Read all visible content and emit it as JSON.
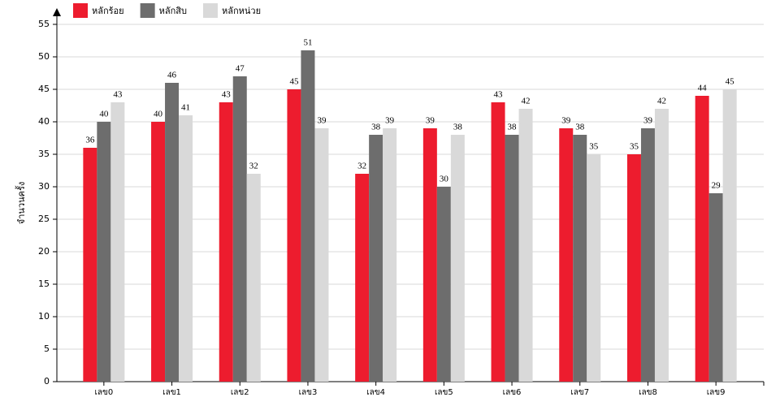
{
  "chart_data": {
    "type": "bar",
    "y_label": "จำนวนครั้ง",
    "categories": [
      "เลข0",
      "เลข1",
      "เลข2",
      "เลข3",
      "เลข4",
      "เลข5",
      "เลข6",
      "เลข7",
      "เลข8",
      "เลข9"
    ],
    "series": [
      {
        "name": "หลักร้อย",
        "color": "#ed1c2e",
        "values": [
          36,
          40,
          43,
          45,
          32,
          39,
          43,
          39,
          35,
          44
        ]
      },
      {
        "name": "หลักสิบ",
        "color": "#6d6d6d",
        "values": [
          40,
          46,
          47,
          51,
          38,
          30,
          38,
          38,
          39,
          29
        ]
      },
      {
        "name": "หลักหน่วย",
        "color": "#d9d9d9",
        "values": [
          43,
          41,
          32,
          39,
          39,
          38,
          42,
          35,
          42,
          45
        ]
      }
    ],
    "ylim": [
      0,
      55
    ],
    "yticks": [
      0,
      5,
      10,
      15,
      20,
      25,
      30,
      35,
      40,
      45,
      50,
      55
    ],
    "grid": true
  }
}
